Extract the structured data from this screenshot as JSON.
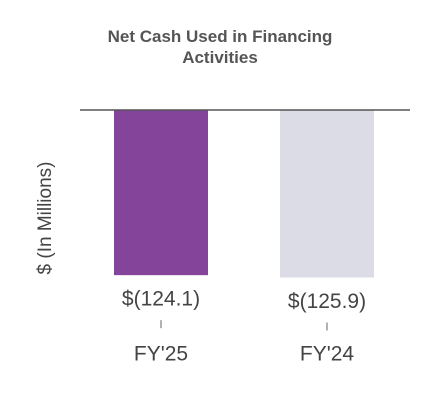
{
  "chart_data": {
    "type": "bar",
    "title": "Net Cash Used in Financing Activities",
    "y_label": "$ (In Millions)",
    "categories": [
      "FY'25",
      "FY'24"
    ],
    "values": [
      -124.1,
      -125.9
    ],
    "value_labels": [
      "$(124.1)",
      "$(125.9)"
    ],
    "colors": [
      "#84449a",
      "#dcdce6"
    ],
    "ylim": [
      -130,
      0
    ]
  }
}
